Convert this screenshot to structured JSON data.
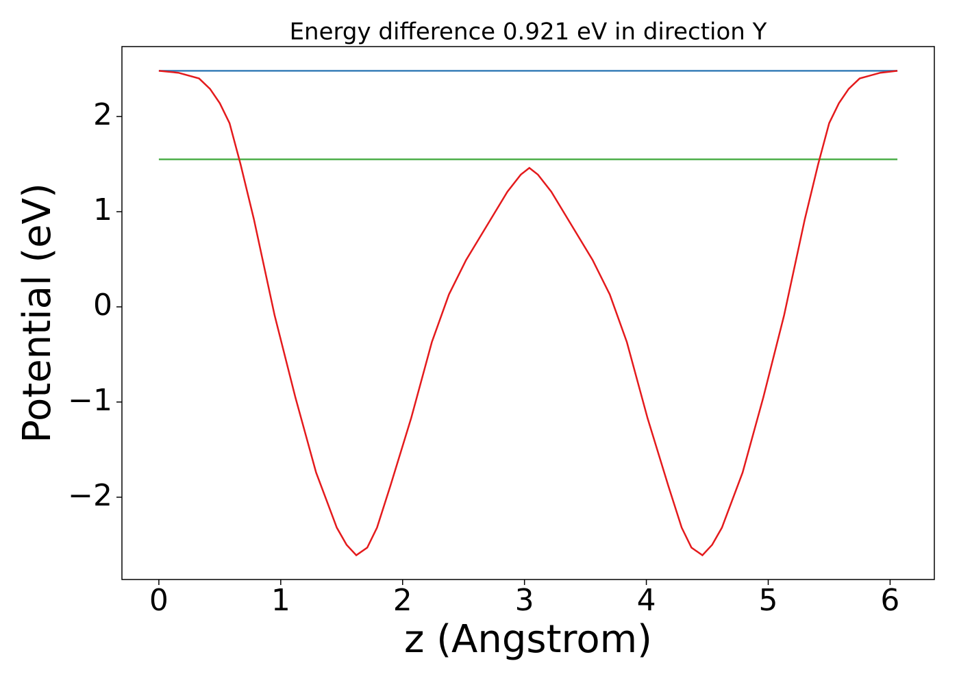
{
  "chart_data": {
    "type": "line",
    "title": "Energy difference 0.921 eV in direction Y",
    "xlabel": "z (Angstrom)",
    "ylabel": "Potential (eV)",
    "xlim": [
      -0.303,
      6.363
    ],
    "ylim": [
      -2.865,
      2.735
    ],
    "xticks": [
      0,
      1,
      2,
      3,
      4,
      5,
      6
    ],
    "yticks": [
      {
        "value": -2,
        "label": "−2"
      },
      {
        "value": -1,
        "label": "−1"
      },
      0,
      1,
      2
    ],
    "series": [
      {
        "color": "#377eb8",
        "x": [
          0,
          6.06
        ],
        "values": [
          2.48,
          2.48
        ]
      },
      {
        "color": "#4daf4a",
        "x": [
          0,
          6.06
        ],
        "values": [
          1.55,
          1.55
        ]
      },
      {
        "color": "#e41a1c",
        "x": [
          0,
          0.16,
          0.33,
          0.42,
          0.5,
          0.58,
          0.67,
          0.78,
          0.95,
          1.12,
          1.29,
          1.46,
          1.54,
          1.62,
          1.71,
          1.79,
          1.9,
          2.07,
          2.24,
          2.38,
          2.52,
          2.69,
          2.86,
          2.97,
          3.04,
          3.11,
          3.22,
          3.39,
          3.56,
          3.7,
          3.84,
          4.01,
          4.18,
          4.29,
          4.37,
          4.46,
          4.54,
          4.62,
          4.79,
          4.96,
          5.13,
          5.3,
          5.41,
          5.5,
          5.58,
          5.66,
          5.75,
          5.92,
          6.06
        ],
        "values": [
          2.48,
          2.46,
          2.4,
          2.29,
          2.14,
          1.93,
          1.5,
          0.92,
          -0.09,
          -0.95,
          -1.74,
          -2.32,
          -2.5,
          -2.61,
          -2.53,
          -2.32,
          -1.88,
          -1.17,
          -0.37,
          0.13,
          0.49,
          0.85,
          1.21,
          1.39,
          1.46,
          1.39,
          1.21,
          0.85,
          0.49,
          0.13,
          -0.37,
          -1.17,
          -1.88,
          -2.32,
          -2.53,
          -2.61,
          -2.5,
          -2.32,
          -1.74,
          -0.95,
          -0.09,
          0.92,
          1.5,
          1.93,
          2.14,
          2.29,
          2.4,
          2.46,
          2.48
        ]
      }
    ]
  }
}
